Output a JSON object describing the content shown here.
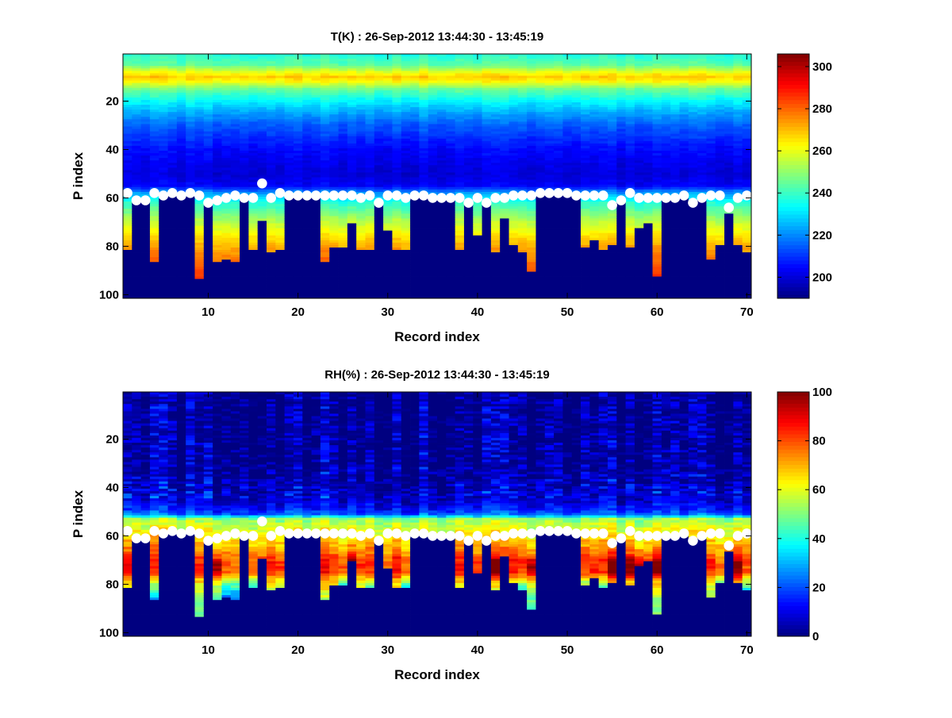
{
  "chart_data": [
    {
      "type": "heatmap",
      "title": "T(K) : 26-Sep-2012 13:44:30 - 13:45:19",
      "xlabel": "Record index",
      "ylabel": "P index",
      "xlim": [
        0.5,
        70.5
      ],
      "ylim": [
        0.5,
        101.5
      ],
      "y_reversed": true,
      "xticks": [
        10,
        20,
        30,
        40,
        50,
        60,
        70
      ],
      "yticks": [
        20,
        40,
        60,
        80,
        100
      ],
      "colormap": "jet",
      "clim": [
        190,
        306
      ],
      "colorbar_ticks": [
        200,
        220,
        240,
        260,
        280,
        300
      ],
      "mean_profile": {
        "p_index": [
          1,
          5,
          8,
          10,
          12,
          15,
          20,
          25,
          30,
          40,
          50,
          55,
          58,
          62,
          70,
          80,
          90,
          101
        ],
        "value": [
          238,
          244,
          260,
          268,
          262,
          246,
          233,
          223,
          215,
          205,
          200,
          204,
          222,
          238,
          255,
          272,
          283,
          290
        ]
      },
      "noise_amplitude": 4
    },
    {
      "type": "heatmap",
      "title": "RH(%) : 26-Sep-2012 13:44:30 - 13:45:19",
      "xlabel": "Record index",
      "ylabel": "P index",
      "xlim": [
        0.5,
        70.5
      ],
      "ylim": [
        0.5,
        101.5
      ],
      "y_reversed": true,
      "xticks": [
        10,
        20,
        30,
        40,
        50,
        60,
        70
      ],
      "yticks": [
        20,
        40,
        60,
        80,
        100
      ],
      "colormap": "jet",
      "clim": [
        0,
        100
      ],
      "colorbar_ticks": [
        0,
        20,
        40,
        60,
        80,
        100
      ],
      "mean_profile": {
        "p_index": [
          1,
          30,
          40,
          45,
          49,
          51,
          52,
          53,
          56,
          60,
          65,
          70,
          75,
          80,
          86,
          95
        ],
        "value": [
          1,
          2,
          5,
          8,
          14,
          22,
          35,
          52,
          58,
          64,
          72,
          80,
          78,
          62,
          50,
          45
        ]
      },
      "noise_amplitude": 10
    }
  ],
  "records": {
    "surface_p_index": [
      58,
      61,
      61,
      58,
      59,
      58,
      59,
      58,
      59,
      62,
      61,
      60,
      59,
      60,
      60,
      54,
      60,
      58,
      59,
      59,
      59,
      59,
      59,
      59,
      59,
      59,
      60,
      59,
      62,
      59,
      59,
      60,
      59,
      59,
      60,
      60,
      60,
      60,
      62,
      60,
      62,
      60,
      60,
      59,
      59,
      59,
      58,
      58,
      58,
      58,
      59,
      59,
      59,
      59,
      63,
      61,
      58,
      60,
      60,
      60,
      60,
      60,
      59,
      62,
      60,
      59,
      59,
      64,
      60,
      59
    ],
    "data_bottom_p_index": [
      81,
      61,
      61,
      86,
      59,
      58,
      59,
      58,
      93,
      62,
      86,
      85,
      86,
      60,
      81,
      69,
      82,
      81,
      59,
      59,
      59,
      59,
      86,
      80,
      80,
      70,
      81,
      81,
      62,
      73,
      81,
      81,
      59,
      59,
      60,
      60,
      60,
      81,
      62,
      75,
      62,
      82,
      68,
      79,
      82,
      90,
      58,
      58,
      58,
      58,
      59,
      80,
      77,
      81,
      79,
      61,
      80,
      72,
      70,
      92,
      60,
      60,
      59,
      62,
      60,
      85,
      79,
      66,
      79,
      82
    ]
  }
}
